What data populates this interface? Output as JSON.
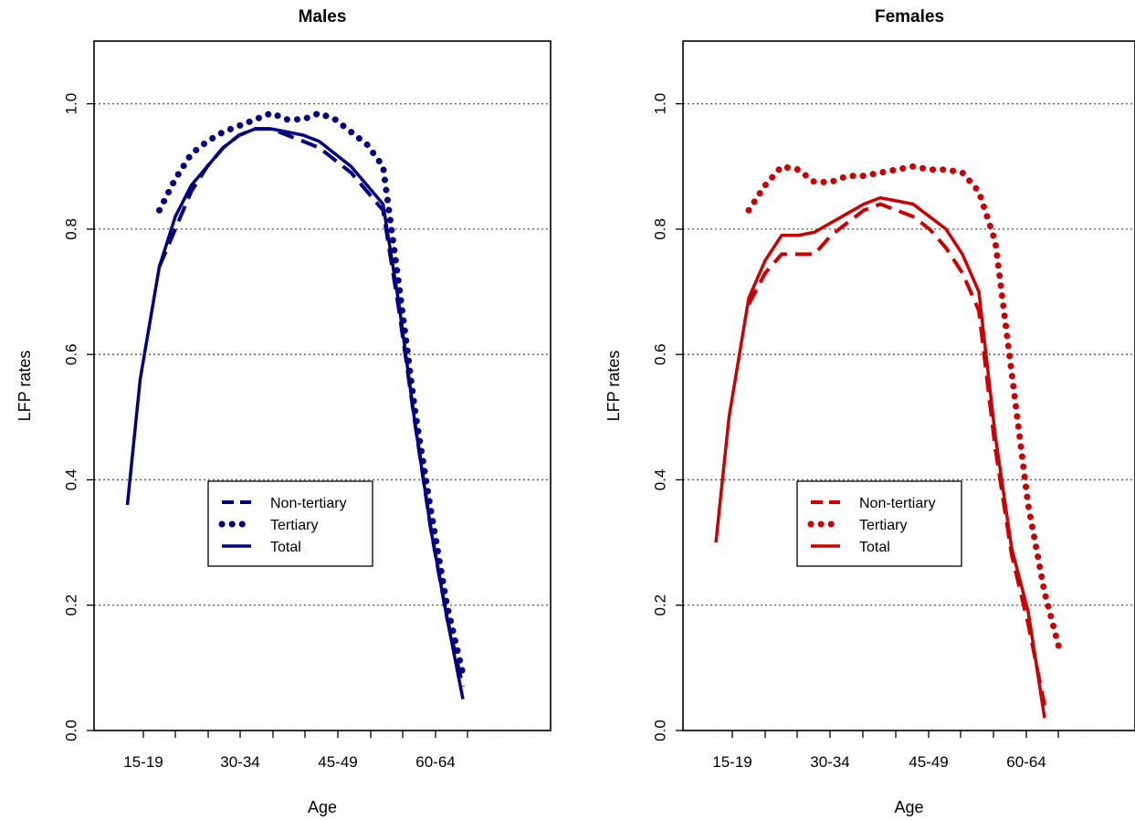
{
  "chart_data": [
    {
      "type": "line",
      "title": "Males",
      "xlabel": "Age",
      "ylabel": "LFP rates",
      "x_tick_labels": [
        "15-19",
        "30-34",
        "45-49",
        "60-64"
      ],
      "y_tick_labels": [
        "0.0",
        "0.2",
        "0.4",
        "0.6",
        "0.8",
        "1.0"
      ],
      "ylim": [
        0,
        1.1
      ],
      "grid": "horizontal dotted",
      "legend_position": "center-left",
      "color": "#000080",
      "series": [
        {
          "name": "Non-tertiary",
          "style": "dashed",
          "x": [
            15,
            17,
            20,
            22.5,
            25,
            27.5,
            30,
            32.5,
            35,
            37.5,
            40,
            42.5,
            45,
            47.5,
            50,
            52.5,
            55,
            57.5,
            60,
            62.5,
            65,
            67.5
          ],
          "y": [
            null,
            null,
            0.74,
            0.8,
            0.86,
            0.9,
            0.93,
            0.95,
            0.96,
            0.96,
            0.95,
            0.94,
            0.93,
            0.91,
            0.89,
            0.86,
            0.83,
            0.67,
            0.49,
            0.32,
            0.18,
            0.07
          ]
        },
        {
          "name": "Tertiary",
          "style": "dotted",
          "x": [
            15,
            17,
            20,
            22.5,
            25,
            27.5,
            30,
            32.5,
            35,
            37.5,
            40,
            42.5,
            45,
            47.5,
            50,
            52.5,
            55,
            57.5,
            60,
            62.5,
            65,
            67.5
          ],
          "y": [
            null,
            null,
            0.83,
            0.88,
            0.92,
            0.94,
            0.955,
            0.965,
            0.975,
            0.985,
            0.975,
            0.975,
            0.985,
            0.975,
            0.955,
            0.935,
            0.9,
            0.71,
            0.51,
            0.35,
            0.2,
            0.09
          ]
        },
        {
          "name": "Total",
          "style": "solid",
          "x": [
            15,
            17,
            20,
            22.5,
            25,
            27.5,
            30,
            32.5,
            35,
            37.5,
            40,
            42.5,
            45,
            47.5,
            50,
            52.5,
            55,
            57.5,
            60,
            62.5,
            65,
            67.5
          ],
          "y": [
            0.36,
            0.56,
            0.74,
            0.82,
            0.87,
            0.9,
            0.93,
            0.95,
            0.96,
            0.96,
            0.955,
            0.95,
            0.94,
            0.92,
            0.9,
            0.87,
            0.84,
            0.68,
            0.49,
            0.32,
            0.18,
            0.05
          ]
        }
      ]
    },
    {
      "type": "line",
      "title": "Females",
      "xlabel": "Age",
      "ylabel": "LFP rates",
      "x_tick_labels": [
        "15-19",
        "30-34",
        "45-49",
        "60-64"
      ],
      "y_tick_labels": [
        "0.0",
        "0.2",
        "0.4",
        "0.6",
        "0.8",
        "1.0"
      ],
      "ylim": [
        0,
        1.1
      ],
      "grid": "horizontal dotted",
      "legend_position": "center-left",
      "color": "#cc0000",
      "series": [
        {
          "name": "Non-tertiary",
          "style": "dashed",
          "x": [
            15,
            17,
            20,
            22.5,
            25,
            27.5,
            30,
            32.5,
            35,
            37.5,
            40,
            42.5,
            45,
            47.5,
            50,
            52.5,
            55,
            57.5,
            60,
            62.5,
            65
          ],
          "y": [
            null,
            null,
            0.68,
            0.73,
            0.76,
            0.76,
            0.76,
            0.79,
            0.81,
            0.83,
            0.84,
            0.83,
            0.82,
            0.8,
            0.77,
            0.73,
            0.67,
            0.45,
            0.28,
            0.17,
            0.04
          ]
        },
        {
          "name": "Tertiary",
          "style": "dotted",
          "x": [
            15,
            17,
            20,
            22.5,
            25,
            27.5,
            30,
            32.5,
            35,
            37.5,
            40,
            42.5,
            45,
            47.5,
            50,
            52.5,
            55,
            57.5,
            60,
            62.5,
            65,
            67.5
          ],
          "y": [
            null,
            null,
            0.83,
            0.87,
            0.9,
            0.895,
            0.875,
            0.875,
            0.885,
            0.885,
            0.89,
            0.895,
            0.9,
            0.895,
            0.895,
            0.89,
            0.86,
            0.78,
            0.57,
            0.36,
            0.22,
            0.12
          ]
        },
        {
          "name": "Total",
          "style": "solid",
          "x": [
            15,
            17,
            20,
            22.5,
            25,
            27.5,
            30,
            32.5,
            35,
            37.5,
            40,
            42.5,
            45,
            47.5,
            50,
            52.5,
            55,
            57.5,
            60,
            62.5,
            65
          ],
          "y": [
            0.3,
            0.5,
            0.69,
            0.75,
            0.79,
            0.79,
            0.795,
            0.81,
            0.825,
            0.84,
            0.85,
            0.845,
            0.84,
            0.82,
            0.8,
            0.76,
            0.7,
            0.47,
            0.29,
            0.19,
            0.02
          ]
        }
      ]
    }
  ]
}
